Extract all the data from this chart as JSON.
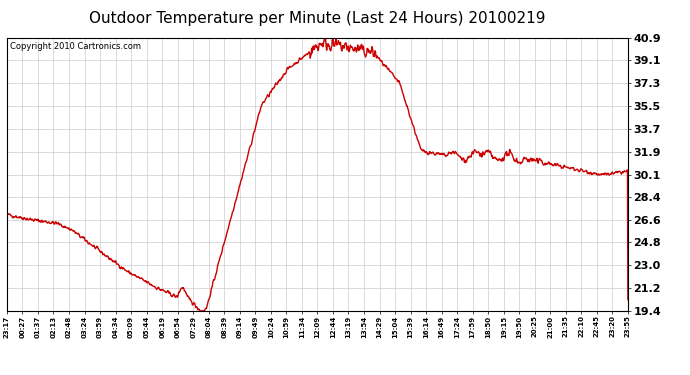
{
  "title": "Outdoor Temperature per Minute (Last 24 Hours) 20100219",
  "copyright_text": "Copyright 2010 Cartronics.com",
  "line_color": "#cc0000",
  "background_color": "#ffffff",
  "grid_color": "#cccccc",
  "yticks": [
    19.4,
    21.2,
    23.0,
    24.8,
    26.6,
    28.4,
    30.1,
    31.9,
    33.7,
    35.5,
    37.3,
    39.1,
    40.9
  ],
  "ymin": 19.4,
  "ymax": 40.9,
  "xtick_labels": [
    "23:17",
    "00:27",
    "01:37",
    "02:13",
    "02:48",
    "03:24",
    "03:59",
    "04:34",
    "05:09",
    "05:44",
    "06:19",
    "06:54",
    "07:29",
    "08:04",
    "08:39",
    "09:14",
    "09:49",
    "10:24",
    "10:59",
    "11:34",
    "12:09",
    "12:44",
    "13:19",
    "13:54",
    "14:29",
    "15:04",
    "15:39",
    "16:14",
    "16:49",
    "17:24",
    "17:59",
    "18:50",
    "19:15",
    "19:50",
    "20:25",
    "21:00",
    "21:35",
    "22:10",
    "22:45",
    "23:20",
    "23:55"
  ],
  "line_width": 1.0,
  "title_fontsize": 11,
  "ytick_fontsize": 8,
  "xtick_fontsize": 5,
  "copyright_fontsize": 6
}
